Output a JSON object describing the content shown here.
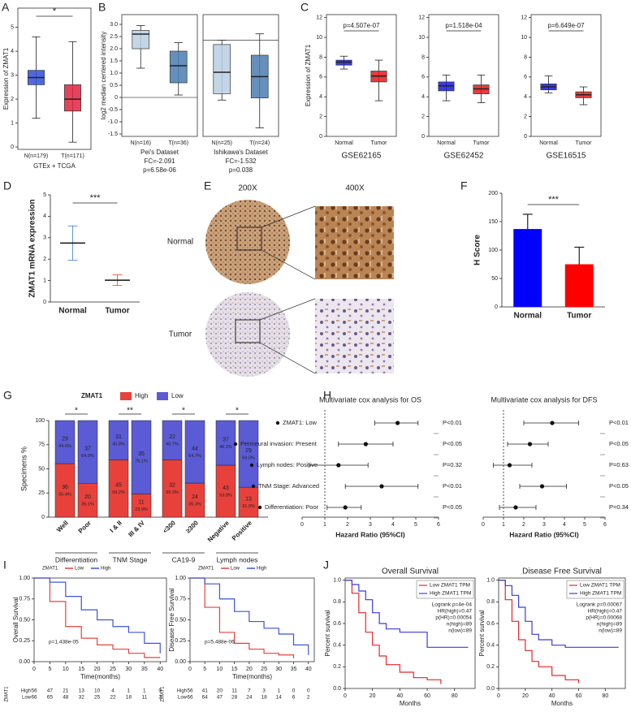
{
  "chart_data": [
    {
      "type": "box",
      "panel": "A",
      "ylabel": "Expression of ZMAT1",
      "xlabel": "GTEx + TCGA",
      "annotation": "*",
      "annotation_color": "#e0253f",
      "categories": [
        "N(n=179)",
        "T(n=171)"
      ],
      "colors": [
        "#2f4fd8",
        "#e0253f"
      ],
      "whisker_low": [
        1.2,
        0.2
      ],
      "q1": [
        2.6,
        1.5
      ],
      "median": [
        2.9,
        2.0
      ],
      "q3": [
        3.2,
        2.6
      ],
      "whisker_high": [
        4.6,
        4.4
      ],
      "ylim": [
        -0.1,
        5.8
      ],
      "yticks": [
        0,
        1,
        2,
        3,
        4,
        5
      ]
    },
    {
      "type": "box",
      "panel": "B",
      "ylabel": "log2 median centered intensity",
      "caption": [
        "Pei's Dataset",
        "FC=-2.091",
        "p=6.58e-06"
      ],
      "categories": [
        "N(n=16)",
        "T(n=36)"
      ],
      "colors": [
        "#b9cfe3",
        "#4a7db0"
      ],
      "whisker_low": [
        1.2,
        0.1
      ],
      "q1": [
        2.0,
        0.6
      ],
      "median": [
        2.6,
        1.3
      ],
      "q3": [
        2.75,
        1.9
      ],
      "whisker_high": [
        2.95,
        2.25
      ],
      "ylim": [
        -1.6,
        3.4
      ],
      "zero_line": true,
      "yticks": [
        -1.5,
        {
          "value": -1,
          "label": "-1.0"
        },
        -0.5,
        0,
        0.5,
        {
          "value": 1,
          "label": "1.0"
        },
        1.5,
        {
          "value": 2,
          "label": "2.0"
        },
        2.5,
        {
          "value": 3,
          "label": "3.0"
        }
      ]
    },
    {
      "type": "box",
      "caption": [
        "Ishikawa's Dataset",
        "FC=-1.532",
        "p=0.038"
      ],
      "categories": [
        "N(n=25)",
        "T(n=24)"
      ],
      "colors": [
        "#b9cfe3",
        "#4a7db0"
      ],
      "whisker_low": [
        -2.8,
        -4.1
      ],
      "q1": [
        -2.5,
        -2.7
      ],
      "median": [
        -1.5,
        -1.7
      ],
      "q3": [
        -0.2,
        -0.7
      ],
      "whisker_high": [
        0.0,
        0.3
      ],
      "ylim": [
        -4.5,
        1.2
      ],
      "zero_line": true
    },
    {
      "type": "box",
      "panel": "C",
      "ylabel": "Expression of ZMAT1",
      "xlabel": "GSE62165",
      "annotation": "p=4.507e-07",
      "categories": [
        "Normal",
        "Tumor"
      ],
      "colors": [
        "#1a1ad8",
        "#e31a1c"
      ],
      "whisker_low": [
        6.8,
        3.6
      ],
      "q1": [
        7.2,
        5.5
      ],
      "median": [
        7.5,
        6.1
      ],
      "q3": [
        7.7,
        6.6
      ],
      "whisker_high": [
        8.1,
        7.7
      ],
      "ylim": [
        0,
        12.3
      ],
      "yticks": [
        0,
        2,
        4,
        6,
        8,
        10,
        12
      ]
    },
    {
      "type": "box",
      "xlabel": "GSE62452",
      "annotation": "p=1.518e-04",
      "categories": [
        "Normal",
        "Tumor"
      ],
      "colors": [
        "#1a1ad8",
        "#e31a1c"
      ],
      "whisker_low": [
        3.6,
        3.4
      ],
      "q1": [
        4.6,
        4.3
      ],
      "median": [
        5.1,
        4.8
      ],
      "q3": [
        5.5,
        5.2
      ],
      "whisker_high": [
        6.2,
        6.2
      ],
      "ylim": [
        0,
        12.3
      ],
      "yticks": [
        0,
        2,
        4,
        6,
        8,
        10,
        12
      ]
    },
    {
      "type": "box",
      "xlabel": "GSE16515",
      "annotation": "p=6.649e-07",
      "categories": [
        "Normal",
        "Tumor"
      ],
      "colors": [
        "#1a1ad8",
        "#e31a1c"
      ],
      "whisker_low": [
        4.4,
        3.2
      ],
      "q1": [
        4.7,
        3.9
      ],
      "median": [
        5.0,
        4.2
      ],
      "q3": [
        5.3,
        4.5
      ],
      "whisker_high": [
        6.1,
        5.0
      ],
      "ylim": [
        0,
        12.3
      ],
      "yticks": [
        0,
        2,
        4,
        6,
        8,
        10,
        12
      ]
    },
    {
      "type": "dot_mean",
      "panel": "D",
      "ylabel": "ZMAT1 mRNA expression",
      "annotation": "***",
      "categories": [
        "Normal",
        "Tumor"
      ],
      "colors": [
        "#3a7bd5",
        "#e8452c"
      ],
      "mean": [
        2.75,
        1.02
      ],
      "sd": [
        0.8,
        0.25
      ],
      "ylim": [
        0,
        5
      ],
      "yticks": [
        0,
        1,
        2,
        3,
        4,
        5
      ]
    },
    {
      "type": "bar",
      "panel": "F",
      "ylabel": "H Score",
      "annotation": "***",
      "categories": [
        "Normal",
        "Tumor"
      ],
      "colors": [
        "#0000ff",
        "#ff0000"
      ],
      "values": [
        137,
        75
      ],
      "errors": [
        26,
        30
      ],
      "ylim": [
        0,
        200
      ],
      "yticks": [
        0,
        50,
        100,
        150,
        200
      ]
    },
    {
      "type": "stacked",
      "panel": "G",
      "ylabel": "Specimens %",
      "legend_title": "ZMAT1",
      "categories": [
        "Well",
        "Poor",
        "I & II",
        "III & IV",
        "<300",
        "≥300",
        "Negative",
        "Positive"
      ],
      "groups": [
        "Differentiation",
        "TNM Stage",
        "CA19-9",
        "Lymph nodes"
      ],
      "significance": [
        "*",
        "**",
        "*",
        "*"
      ],
      "series": [
        {
          "name": "High",
          "color": "#e8413c",
          "values": [
            55.4,
            35.1,
            59.2,
            23.9,
            59.3,
            35.3,
            53.8,
            31.0
          ],
          "value_labels": [
            "55.4%",
            "35.1%",
            "59.2%",
            "23.9%",
            "59.3%",
            "35.3%",
            "53.8%",
            "31.0%"
          ],
          "counts": [
            36,
            20,
            45,
            11,
            32,
            24,
            43,
            13
          ]
        },
        {
          "name": "Low",
          "color": "#5b5bd6",
          "values": [
            44.6,
            64.9,
            40.8,
            76.1,
            40.7,
            64.7,
            46.2,
            69.0
          ],
          "value_labels": [
            "44.6%",
            "64.9%",
            "40.8%",
            "76.1%",
            "40.7%",
            "64.7%",
            "46.2%",
            "69.0%"
          ],
          "counts": [
            29,
            37,
            31,
            35,
            22,
            44,
            37,
            29
          ]
        }
      ],
      "ylim": [
        0,
        100
      ],
      "yticks": [
        0,
        25,
        50,
        75,
        100
      ]
    },
    {
      "type": "forest",
      "panel": "H",
      "title": "Multivariate cox analysis for OS",
      "xlabel": "Hazard Ratio (95%CI)",
      "rows": [
        "ZMAT1: Low",
        "Perineural invasion: Present",
        "Lymph nodes: Positive",
        "TNM Stage: Advanced",
        "Differentiation: Poor"
      ],
      "hr": [
        4.2,
        2.8,
        1.6,
        3.5,
        1.9
      ],
      "ci_low": [
        3.2,
        1.6,
        0.3,
        1.9,
        1.1
      ],
      "ci_high": [
        5.1,
        4.0,
        2.9,
        5.1,
        2.6
      ],
      "p_labels": [
        "P<0.01",
        "P<0.05",
        "P=0.32",
        "P<0.01",
        "P<0.05"
      ],
      "ref_line": 1,
      "xlim": [
        0,
        6
      ],
      "xticks": [
        0,
        1,
        2,
        3,
        4,
        5,
        6
      ]
    },
    {
      "type": "forest",
      "title": "Multivariate cox analysis for DFS",
      "xlabel": "Hazard Ratio (95%CI)",
      "hr": [
        3.4,
        2.3,
        1.3,
        2.9,
        1.6
      ],
      "ci_low": [
        2.0,
        1.2,
        0.5,
        1.8,
        0.8
      ],
      "ci_high": [
        4.7,
        3.2,
        2.4,
        4.1,
        2.6
      ],
      "p_labels": [
        "P<0.01",
        "P<0.05",
        "P=0.63",
        "P<0.05",
        "P=0.34"
      ],
      "ref_line": 1,
      "xlim": [
        0,
        6
      ],
      "xticks": [
        0,
        1,
        2,
        3,
        4,
        5,
        6
      ]
    },
    {
      "type": "km",
      "panel": "I",
      "ylabel": "Overall Survival",
      "xlabel": "Time(months)",
      "legend_title": "ZMAT1",
      "annotation": "p=1.438e-05",
      "x": [
        0,
        5,
        10,
        15,
        20,
        25,
        30,
        35,
        40
      ],
      "series": [
        {
          "name": "Low",
          "color": "#e8403c",
          "values": [
            1,
            0.72,
            0.42,
            0.28,
            0.2,
            0.15,
            0.1,
            0.05,
            0.05
          ]
        },
        {
          "name": "High",
          "color": "#3b55d9",
          "values": [
            1,
            0.95,
            0.78,
            0.62,
            0.5,
            0.42,
            0.35,
            0.22,
            0.1
          ]
        }
      ],
      "risk_table": {
        "title": "ZMAT1",
        "rows": [
          {
            "name": "High",
            "color": "#e8403c",
            "values": [
              56,
              47,
              21,
              13,
              10,
              4,
              1,
              1,
              0
            ]
          },
          {
            "name": "Low",
            "color": "#3b55d9",
            "values": [
              66,
              65,
              48,
              32,
              25,
              22,
              18,
              11,
              3
            ]
          }
        ]
      },
      "xlim": [
        0,
        42
      ],
      "ylim": [
        0,
        1
      ],
      "xticks": [
        0,
        5,
        10,
        15,
        20,
        25,
        30,
        35,
        40
      ],
      "yticks": [
        {
          "value": 0,
          "label": "0.00"
        },
        0.25,
        {
          "value": 0.5,
          "label": "0.50"
        },
        0.75,
        {
          "value": 1,
          "label": "1.00"
        }
      ]
    },
    {
      "type": "km",
      "ylabel": "Disease Free Survival",
      "xlabel": "Time(months)",
      "legend_title": "ZMAT1",
      "annotation": "p=5.488e-06",
      "x": [
        0,
        5,
        10,
        15,
        20,
        25,
        30,
        35,
        40
      ],
      "series": [
        {
          "name": "Low",
          "color": "#e8403c",
          "values": [
            1,
            0.65,
            0.35,
            0.22,
            0.15,
            0.1,
            0.08,
            0.04,
            null
          ]
        },
        {
          "name": "High",
          "color": "#3b55d9",
          "values": [
            1,
            0.93,
            0.75,
            0.6,
            0.48,
            0.4,
            0.33,
            0.2,
            0.08
          ]
        }
      ],
      "risk_table": {
        "title": "ZMAT1",
        "rows": [
          {
            "name": "High",
            "color": "#e8403c",
            "values": [
              56,
              41,
              20,
              11,
              7,
              3,
              1,
              0,
              0
            ]
          },
          {
            "name": "Low",
            "color": "#3b55d9",
            "values": [
              66,
              64,
              47,
              28,
              24,
              18,
              14,
              6,
              2
            ]
          }
        ]
      },
      "xlim": [
        0,
        42
      ],
      "ylim": [
        0,
        1
      ],
      "xticks": [
        0,
        5,
        10,
        15,
        20,
        25,
        30,
        35,
        40
      ],
      "yticks": [
        {
          "value": 0,
          "label": "0.00"
        },
        0.25,
        {
          "value": 0.5,
          "label": "0.50"
        },
        0.75,
        {
          "value": 1,
          "label": "1.00"
        }
      ]
    },
    {
      "type": "km",
      "panel": "J",
      "title": "Overall Survival",
      "ylabel": "Percent survival",
      "xlabel": "Months",
      "x": [
        0,
        5,
        10,
        15,
        20,
        25,
        30,
        40,
        50,
        60,
        70,
        90
      ],
      "series": [
        {
          "name": "Low ZMAT1 TPM",
          "color": "#e8262a",
          "values": [
            1,
            0.88,
            0.7,
            0.52,
            0.4,
            0.3,
            0.22,
            0.15,
            0.1,
            0.08,
            0.04,
            null
          ]
        },
        {
          "name": "High ZMAT1 TPM",
          "color": "#3b3bd9",
          "values": [
            1,
            0.96,
            0.9,
            0.82,
            0.7,
            0.6,
            0.55,
            0.52,
            0.52,
            0.38,
            0.38,
            0.38
          ]
        }
      ],
      "stats": [
        "Logrank p=4e-04",
        "HR(high)=0.47",
        "p(HR)=0.00054",
        "n(high)=89",
        "n(low)=89"
      ],
      "xlim": [
        0,
        95
      ],
      "ylim": [
        0,
        1.02
      ],
      "xticks": [
        0,
        20,
        40,
        60,
        80
      ],
      "yticks": [
        {
          "value": 0,
          "label": "0.0"
        },
        0.2,
        0.4,
        0.6,
        0.8,
        {
          "value": 1,
          "label": "1.0"
        }
      ]
    },
    {
      "type": "km",
      "title": "Disease Free Survival",
      "ylabel": "Percent survival",
      "xlabel": "Months",
      "x": [
        0,
        5,
        10,
        15,
        20,
        25,
        30,
        40,
        50,
        60,
        70,
        90
      ],
      "series": [
        {
          "name": "Low ZMAT1 TPM",
          "color": "#e8262a",
          "values": [
            1,
            0.82,
            0.62,
            0.45,
            0.35,
            0.25,
            0.2,
            0.12,
            0.08,
            0.05,
            null,
            null
          ]
        },
        {
          "name": "High ZMAT1 TPM",
          "color": "#3b3bd9",
          "values": [
            1,
            0.95,
            0.86,
            0.75,
            0.62,
            0.5,
            0.45,
            0.4,
            0.38,
            0.38,
            0.38,
            0.38
          ]
        }
      ],
      "stats": [
        "Logrank p=0.00067",
        "HR(high)=0.47",
        "p(HR)=0.00068",
        "n(high)=89",
        "n(low)=89"
      ],
      "xlim": [
        0,
        95
      ],
      "ylim": [
        0,
        1.02
      ],
      "xticks": [
        0,
        20,
        40,
        60,
        80
      ],
      "yticks": [
        {
          "value": 0,
          "label": "0.0"
        },
        0.2,
        0.4,
        0.6,
        0.8,
        {
          "value": 1,
          "label": "1.0"
        }
      ]
    }
  ],
  "figure_e": {
    "panel": "E",
    "magnifications": [
      "200X",
      "400X"
    ],
    "rows": [
      "Normal",
      "Tumor"
    ]
  }
}
